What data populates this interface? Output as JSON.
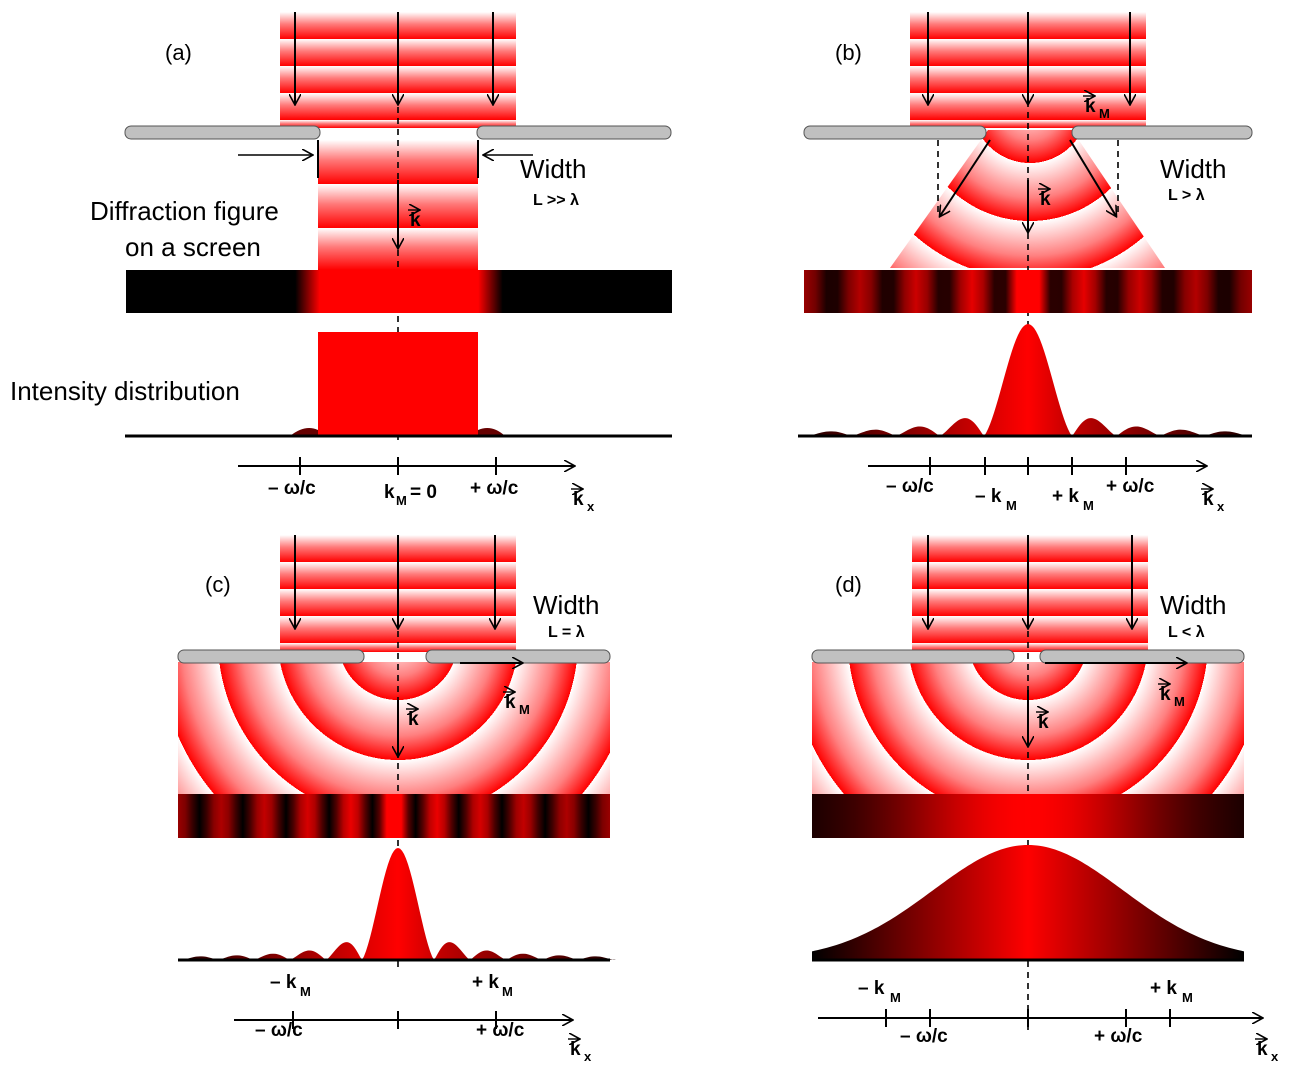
{
  "labels": {
    "diffraction_line1": "Diffraction figure",
    "diffraction_line2": "on a screen",
    "intensity": "Intensity distribution"
  },
  "panels": [
    {
      "id": "a",
      "tag": "(a)",
      "width_word": "Width",
      "condition": "L >> λ",
      "axis_labels": [
        "– ω/c",
        "k",
        "M",
        "= 0",
        "+ ω/c"
      ]
    },
    {
      "id": "b",
      "tag": "(b)",
      "width_word": "Width",
      "condition": "L > λ",
      "axis_labels": [
        "– ω/c",
        "– k",
        "M",
        "+ k",
        "M",
        "+ ω/c"
      ]
    },
    {
      "id": "c",
      "tag": "(c)",
      "width_word": "Width",
      "condition": "L = λ",
      "axis_labels": [
        "– k",
        "M",
        "+ k",
        "M",
        "– ω/c",
        "+ ω/c"
      ]
    },
    {
      "id": "d",
      "tag": "(d)",
      "width_word": "Width",
      "condition": "L < λ",
      "axis_labels": [
        "– k",
        "M",
        "+ k",
        "M",
        "– ω/c",
        "+ ω/c"
      ]
    }
  ],
  "vector_k": "k",
  "vector_kM": "k",
  "sub_M": "M",
  "axis_kx": "k",
  "sub_x": "x",
  "colors": {
    "red": "#ff0000",
    "gray": "#c0c0c0",
    "black": "#000000"
  }
}
